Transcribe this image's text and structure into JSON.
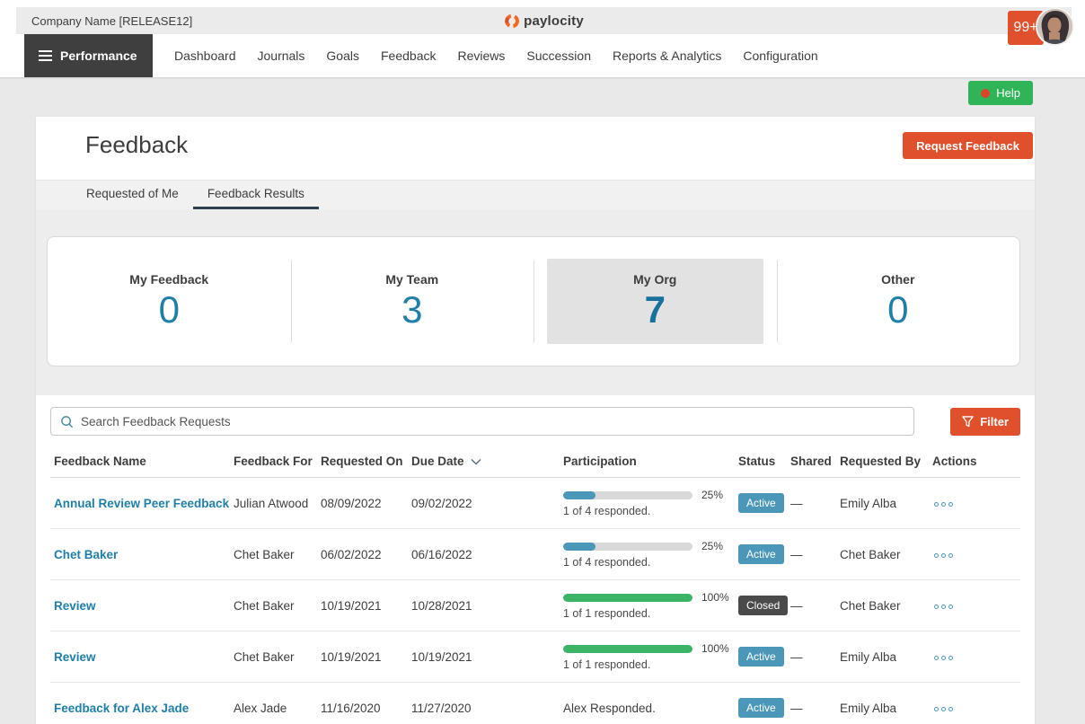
{
  "header": {
    "company_name": "Company Name [RELEASE12]",
    "brand": "paylocity",
    "notification_count": "99+"
  },
  "nav": {
    "module": "Performance",
    "items": [
      "Dashboard",
      "Journals",
      "Goals",
      "Feedback",
      "Reviews",
      "Succession",
      "Reports & Analytics",
      "Configuration"
    ]
  },
  "help": {
    "label": "Help"
  },
  "page": {
    "title": "Feedback",
    "request_button": "Request Feedback"
  },
  "tabs": [
    {
      "label": "Requested of Me",
      "active": false
    },
    {
      "label": "Feedback Results",
      "active": true
    }
  ],
  "summary_cards": [
    {
      "label": "My Feedback",
      "value": "0",
      "selected": false
    },
    {
      "label": "My Team",
      "value": "3",
      "selected": false
    },
    {
      "label": "My Org",
      "value": "7",
      "selected": true
    },
    {
      "label": "Other",
      "value": "0",
      "selected": false
    }
  ],
  "search": {
    "placeholder": "Search Feedback Requests",
    "filter_label": "Filter"
  },
  "table": {
    "columns": [
      "Feedback Name",
      "Feedback For",
      "Requested On",
      "Due Date",
      "Participation",
      "Status",
      "Shared",
      "Requested By",
      "Actions"
    ],
    "sorted_column": "Due Date",
    "sort_direction": "desc",
    "rows": [
      {
        "name": "Annual Review Peer Feedback",
        "for": "Julian Atwood",
        "requested_on": "08/09/2022",
        "due_date": "09/02/2022",
        "participation": {
          "percent": 25,
          "label": "25%",
          "detail": "1 of 4 responded.",
          "color": "blue"
        },
        "status": "Active",
        "shared": "—",
        "requested_by": "Emily Alba"
      },
      {
        "name": "Chet Baker",
        "for": "Chet Baker",
        "requested_on": "06/02/2022",
        "due_date": "06/16/2022",
        "participation": {
          "percent": 25,
          "label": "25%",
          "detail": "1 of 4 responded.",
          "color": "blue"
        },
        "status": "Active",
        "shared": "—",
        "requested_by": "Chet Baker"
      },
      {
        "name": "Review",
        "for": "Chet Baker",
        "requested_on": "10/19/2021",
        "due_date": "10/28/2021",
        "participation": {
          "percent": 100,
          "label": "100%",
          "detail": "1 of 1 responded.",
          "color": "green"
        },
        "status": "Closed",
        "shared": "—",
        "requested_by": "Chet Baker"
      },
      {
        "name": "Review",
        "for": "Chet Baker",
        "requested_on": "10/19/2021",
        "due_date": "10/19/2021",
        "participation": {
          "percent": 100,
          "label": "100%",
          "detail": "1 of 1 responded.",
          "color": "green"
        },
        "status": "Active",
        "shared": "—",
        "requested_by": "Emily Alba"
      },
      {
        "name": "Feedback for Alex Jade",
        "for": "Alex Jade",
        "requested_on": "11/16/2020",
        "due_date": "11/27/2020",
        "participation": {
          "text": "Alex Responded."
        },
        "status": "Active",
        "shared": "—",
        "requested_by": "Emily Alba"
      }
    ]
  },
  "colors": {
    "accent_orange": "#e0502c",
    "link_blue": "#1f7fa9",
    "badge_blue": "#4a97ba",
    "progress_green": "#3cb468",
    "help_green": "#2fb457",
    "closed_gray": "#4a4a4a"
  }
}
